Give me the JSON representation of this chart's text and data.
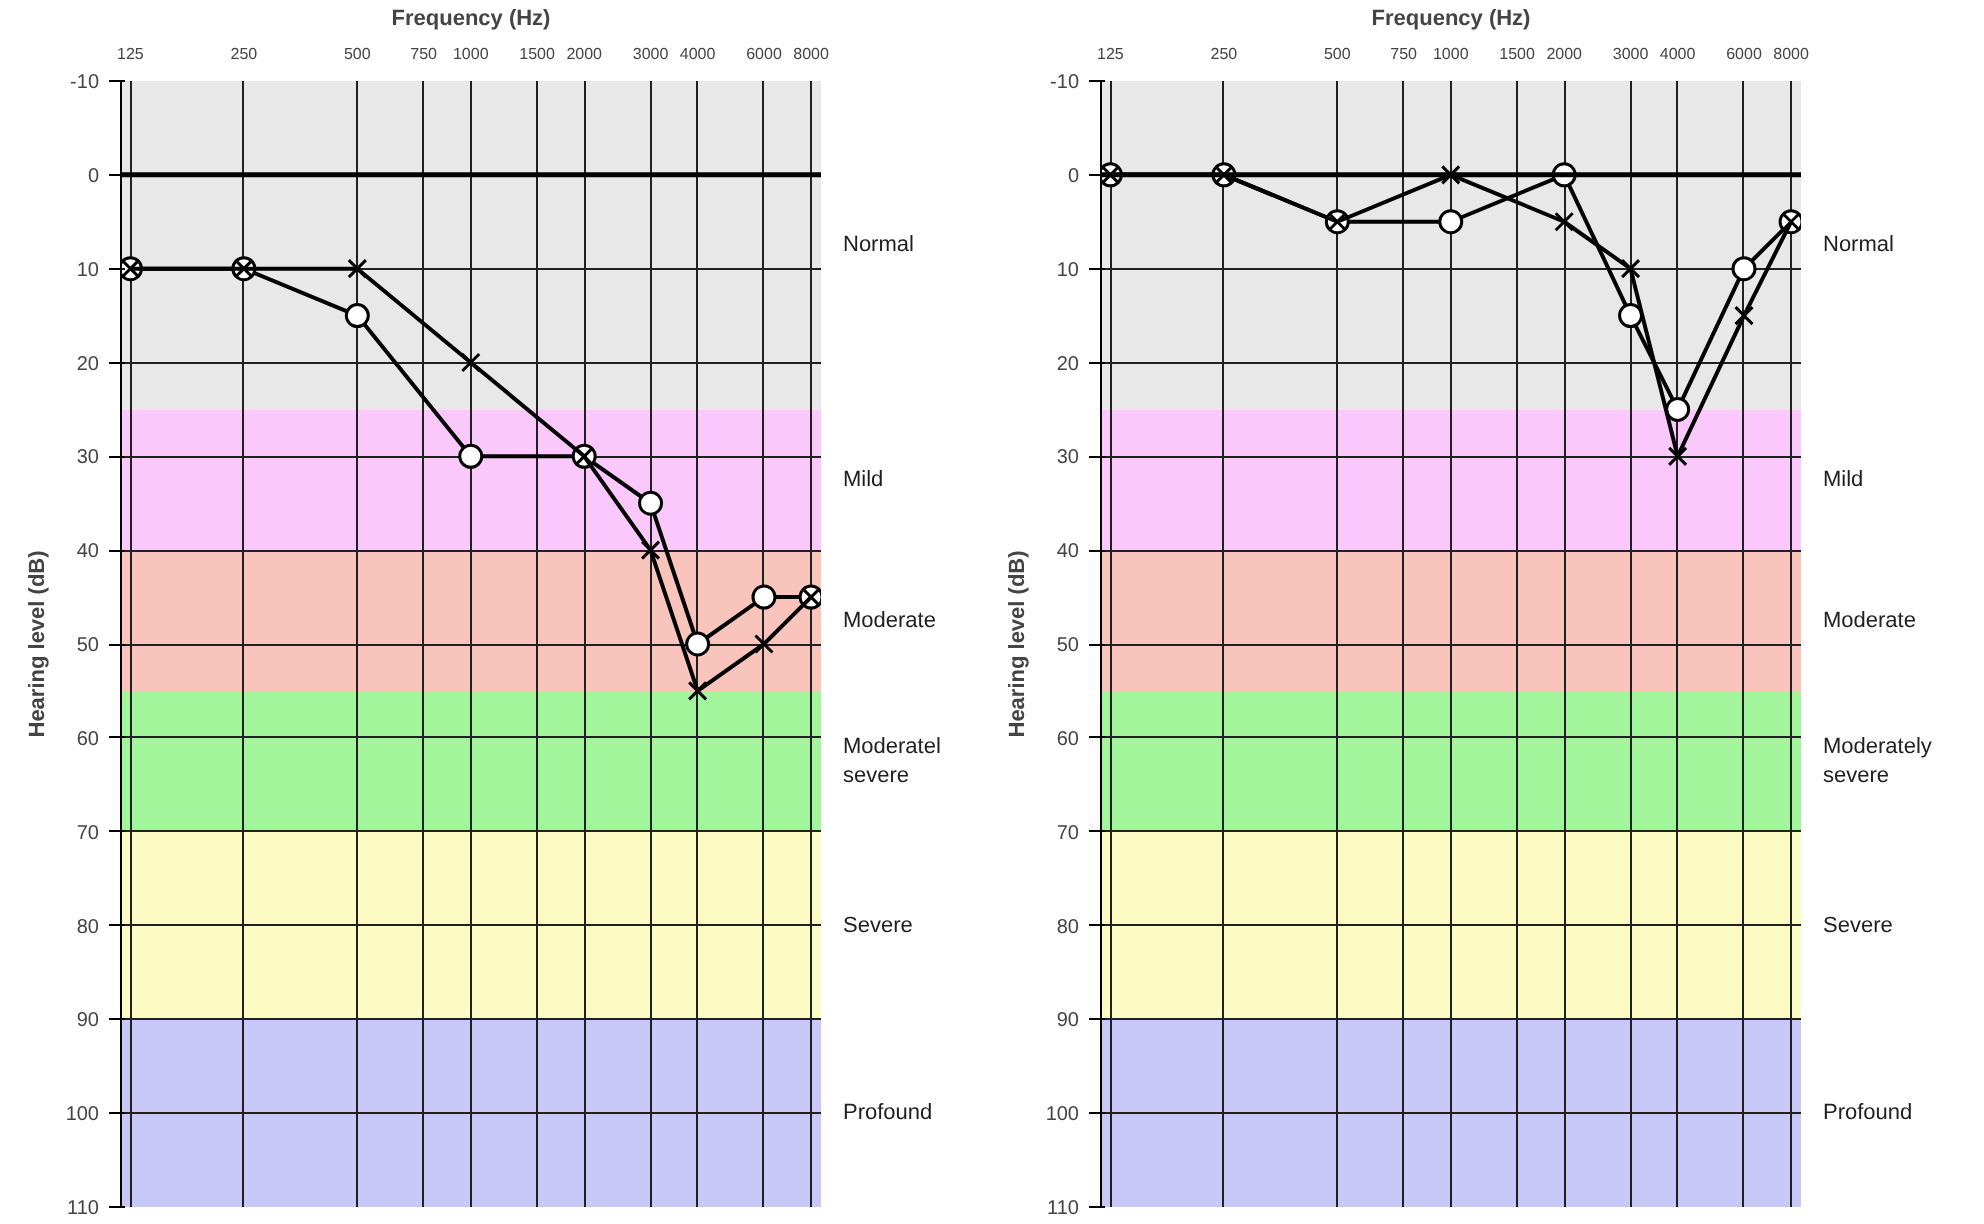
{
  "chart_data": [
    {
      "type": "line",
      "xlabel": "Frequency (Hz)",
      "ylabel": "Hearing level (dB)",
      "log": "x",
      "xlim": [
        118,
        8500
      ],
      "ylim": [
        110,
        -10
      ],
      "xticks": [
        125,
        250,
        500,
        750,
        1000,
        1500,
        2000,
        3000,
        4000,
        6000,
        8000
      ],
      "yticks": [
        -10,
        0,
        10,
        20,
        30,
        40,
        50,
        60,
        70,
        80,
        90,
        100,
        110
      ],
      "grid": true,
      "x": [
        125,
        250,
        500,
        1000,
        2000,
        3000,
        4000,
        6000,
        8000
      ],
      "series": [
        {
          "color": "#000000",
          "marker": "circle",
          "values": [
            10,
            10,
            15,
            30,
            30,
            35,
            50,
            45,
            45
          ]
        },
        {
          "color": "#000000",
          "marker": "cross",
          "values": [
            10,
            10,
            10,
            20,
            30,
            40,
            55,
            50,
            45
          ]
        }
      ],
      "ref_lines": [
        {
          "axis": "y",
          "value": 0,
          "color": "#000000"
        }
      ],
      "bands": [
        {
          "axis": "y",
          "from": -10,
          "to": 25,
          "label": "Normal",
          "color": "#e8e8e8"
        },
        {
          "axis": "y",
          "from": 25,
          "to": 40,
          "label": "Mild",
          "color": "#fbc8fb"
        },
        {
          "axis": "y",
          "from": 40,
          "to": 55,
          "label": "Moderate",
          "color": "#f9c4bc"
        },
        {
          "axis": "y",
          "from": 55,
          "to": 70,
          "label": "Moderatel\nsevere",
          "color": "#a2f59a"
        },
        {
          "axis": "y",
          "from": 70,
          "to": 90,
          "label": "Severe",
          "color": "#fdfbc4"
        },
        {
          "axis": "y",
          "from": 90,
          "to": 110,
          "label": "Profound",
          "color": "#c8c8f8"
        }
      ]
    },
    {
      "type": "line",
      "xlabel": "Frequency (Hz)",
      "ylabel": "Hearing level (dB)",
      "log": "x",
      "xlim": [
        118,
        8500
      ],
      "ylim": [
        110,
        -10
      ],
      "xticks": [
        125,
        250,
        500,
        750,
        1000,
        1500,
        2000,
        3000,
        4000,
        6000,
        8000
      ],
      "yticks": [
        -10,
        0,
        10,
        20,
        30,
        40,
        50,
        60,
        70,
        80,
        90,
        100,
        110
      ],
      "grid": true,
      "x": [
        125,
        250,
        500,
        1000,
        2000,
        3000,
        4000,
        6000,
        8000
      ],
      "series": [
        {
          "color": "#000000",
          "marker": "circle",
          "values": [
            0,
            0,
            5,
            5,
            0,
            15,
            25,
            10,
            5
          ]
        },
        {
          "color": "#000000",
          "marker": "cross",
          "values": [
            0,
            0,
            5,
            0,
            5,
            10,
            30,
            15,
            5
          ]
        }
      ],
      "ref_lines": [
        {
          "axis": "y",
          "value": 0,
          "color": "#000000"
        }
      ],
      "bands": [
        {
          "axis": "y",
          "from": -10,
          "to": 25,
          "label": "Normal",
          "color": "#e8e8e8"
        },
        {
          "axis": "y",
          "from": 25,
          "to": 40,
          "label": "Mild",
          "color": "#fbc8fb"
        },
        {
          "axis": "y",
          "from": 40,
          "to": 55,
          "label": "Moderate",
          "color": "#f9c4bc"
        },
        {
          "axis": "y",
          "from": 55,
          "to": 70,
          "label": "Moderately\nsevere",
          "color": "#a2f59a"
        },
        {
          "axis": "y",
          "from": 70,
          "to": 90,
          "label": "Severe",
          "color": "#fdfbc4"
        },
        {
          "axis": "y",
          "from": 90,
          "to": 110,
          "label": "Profound",
          "color": "#c8c8f8"
        }
      ]
    }
  ]
}
